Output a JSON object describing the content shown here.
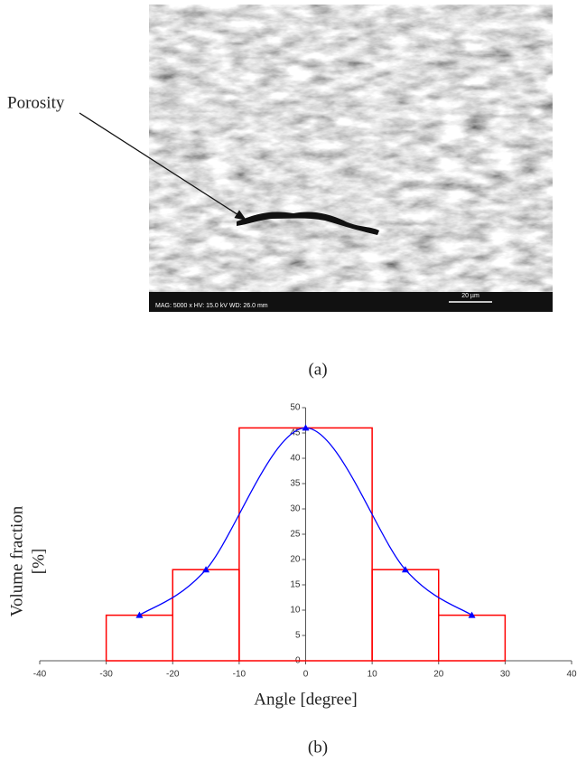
{
  "panel_a": {
    "annotation": "Porosity",
    "info_bar": "MAG: 5000 x  HV: 15.0 kV  WD: 26.0 mm",
    "scale_bar": "20 µm",
    "label": "(a)"
  },
  "panel_b": {
    "label": "(b)"
  },
  "chart_data": {
    "type": "histogram",
    "bins": [
      -30,
      -20,
      -10,
      10,
      20,
      30
    ],
    "values": [
      9,
      18,
      46,
      18,
      9
    ],
    "color": "#ff0000",
    "line": {
      "x": [
        -25,
        -15,
        0,
        15,
        25
      ],
      "values": [
        9,
        18,
        46,
        18,
        9
      ],
      "color": "#0000ff"
    },
    "xlim": [
      -40,
      40
    ],
    "xticks": [
      -40,
      -30,
      -20,
      -10,
      0,
      10,
      20,
      30,
      40
    ],
    "ylim": [
      0,
      50
    ],
    "yticks": [
      0,
      5,
      10,
      15,
      20,
      25,
      30,
      35,
      40,
      45,
      50
    ],
    "xlabel": "Angle [degree]",
    "ylabel": [
      "Volume fraction",
      "[%]"
    ]
  }
}
